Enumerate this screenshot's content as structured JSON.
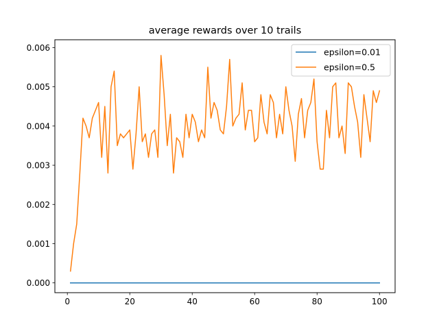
{
  "chart_data": {
    "type": "line",
    "title": "average rewards over 10 trails",
    "xlabel": "",
    "ylabel": "",
    "xlim": [
      -4,
      105
    ],
    "ylim": [
      -0.00025,
      0.0062
    ],
    "xticks": [
      0,
      20,
      40,
      60,
      80,
      100
    ],
    "xtick_labels": [
      "0",
      "20",
      "40",
      "60",
      "80",
      "100"
    ],
    "yticks": [
      0.0,
      0.001,
      0.002,
      0.003,
      0.004,
      0.005,
      0.006
    ],
    "ytick_labels": [
      "0.000",
      "0.001",
      "0.002",
      "0.003",
      "0.004",
      "0.005",
      "0.006"
    ],
    "grid": false,
    "legend_position": "top-right",
    "series": [
      {
        "name": "epsilon=0.01",
        "color": "#1f77b4",
        "x": [
          1,
          100
        ],
        "y": [
          0.0,
          0.0
        ]
      },
      {
        "name": "epsilon=0.5",
        "color": "#ff7f0e",
        "x": [
          1,
          2,
          3,
          4,
          5,
          6,
          7,
          8,
          9,
          10,
          11,
          12,
          13,
          14,
          15,
          16,
          17,
          18,
          19,
          20,
          21,
          22,
          23,
          24,
          25,
          26,
          27,
          28,
          29,
          30,
          31,
          32,
          33,
          34,
          35,
          36,
          37,
          38,
          39,
          40,
          41,
          42,
          43,
          44,
          45,
          46,
          47,
          48,
          49,
          50,
          51,
          52,
          53,
          54,
          55,
          56,
          57,
          58,
          59,
          60,
          61,
          62,
          63,
          64,
          65,
          66,
          67,
          68,
          69,
          70,
          71,
          72,
          73,
          74,
          75,
          76,
          77,
          78,
          79,
          80,
          81,
          82,
          83,
          84,
          85,
          86,
          87,
          88,
          89,
          90,
          91,
          92,
          93,
          94,
          95,
          96,
          97,
          98,
          99,
          100
        ],
        "y": [
          0.0003,
          0.001,
          0.0015,
          0.0028,
          0.0042,
          0.004,
          0.0037,
          0.0042,
          0.0044,
          0.0046,
          0.0032,
          0.0045,
          0.0028,
          0.005,
          0.0054,
          0.0035,
          0.0038,
          0.0037,
          0.0038,
          0.0039,
          0.0029,
          0.0038,
          0.005,
          0.0036,
          0.0038,
          0.0032,
          0.0038,
          0.0039,
          0.0032,
          0.0058,
          0.0048,
          0.0035,
          0.0043,
          0.0028,
          0.0037,
          0.0036,
          0.0032,
          0.0043,
          0.0037,
          0.0043,
          0.0041,
          0.0036,
          0.0039,
          0.0037,
          0.0055,
          0.0042,
          0.0046,
          0.0044,
          0.0039,
          0.0038,
          0.0045,
          0.0057,
          0.004,
          0.0042,
          0.0043,
          0.0051,
          0.0039,
          0.0044,
          0.0044,
          0.0036,
          0.0037,
          0.0048,
          0.0041,
          0.0038,
          0.0048,
          0.0046,
          0.0037,
          0.0043,
          0.0038,
          0.005,
          0.0044,
          0.004,
          0.0031,
          0.0043,
          0.0047,
          0.0037,
          0.0044,
          0.0046,
          0.0052,
          0.0036,
          0.0029,
          0.0029,
          0.0044,
          0.0037,
          0.005,
          0.0051,
          0.0037,
          0.004,
          0.0033,
          0.0051,
          0.005,
          0.0045,
          0.0041,
          0.0032,
          0.0048,
          0.0042,
          0.0036,
          0.0049,
          0.0046,
          0.0049
        ]
      }
    ]
  }
}
